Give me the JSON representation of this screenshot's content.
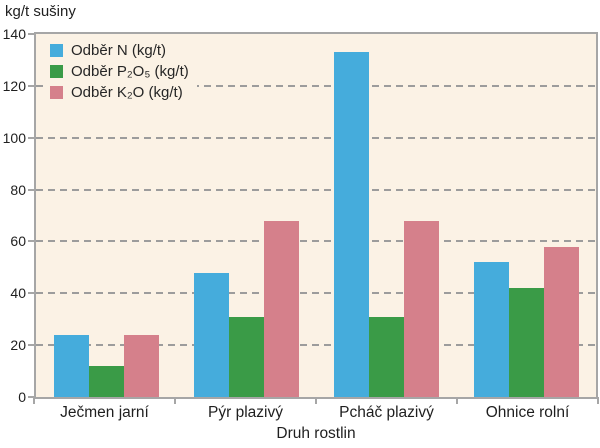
{
  "chart_data": {
    "type": "bar",
    "title": "",
    "ylabel": "kg/t sušiny",
    "xlabel": "Druh rostlin",
    "ylim": [
      0,
      140
    ],
    "yticks": [
      0,
      20,
      40,
      60,
      80,
      100,
      120,
      140
    ],
    "grid": "horizontal-dashed",
    "legend_position": "top-left-inside",
    "plot_background": "#fbf2e5",
    "axis_color": "#a6a6a6",
    "gridline_color": "#9c9c9c",
    "categories": [
      "Ječmen jarní",
      "Pýr plazivý",
      "Pcháč plazivý",
      "Ohnice rolní"
    ],
    "series": [
      {
        "name": "Odběr N (kg/t)",
        "color": "#45acdc",
        "values": [
          24,
          48,
          133,
          52
        ]
      },
      {
        "name": "Odběr P₂O₅ (kg/t)",
        "color": "#3a9b47",
        "values": [
          12,
          31,
          31,
          42
        ]
      },
      {
        "name": "Odběr K₂O (kg/t)",
        "color": "#d5808b",
        "values": [
          24,
          68,
          68,
          58
        ]
      }
    ]
  }
}
